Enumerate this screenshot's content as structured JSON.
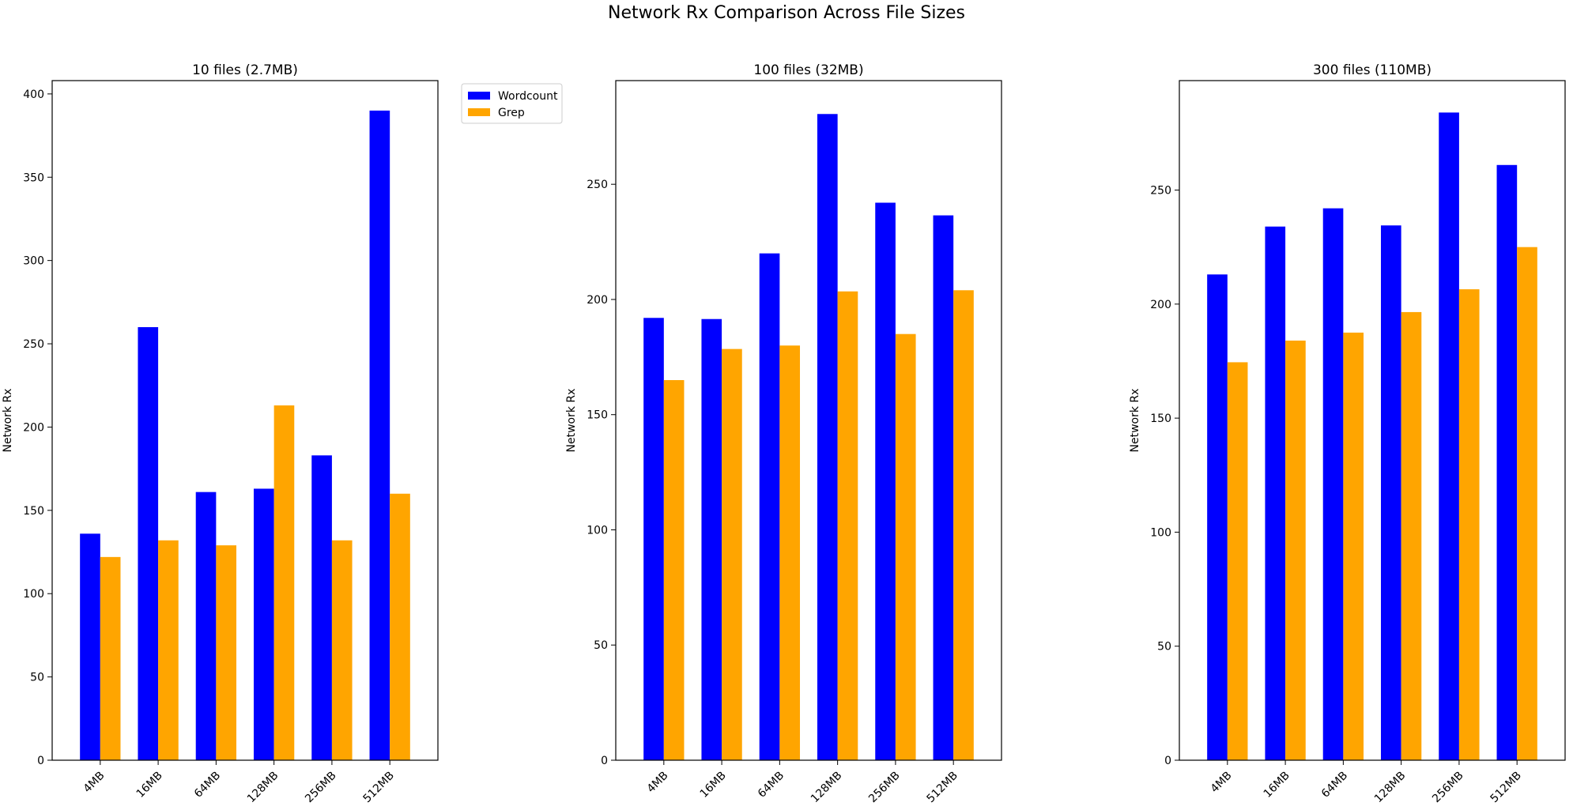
{
  "figure": {
    "title": "Network Rx Comparison Across File Sizes"
  },
  "legend": {
    "placement": "outside-right-of-first-panel",
    "entries": [
      {
        "label": "Wordcount",
        "color": "#0000ff"
      },
      {
        "label": "Grep",
        "color": "#ffa500"
      }
    ]
  },
  "chart_data": [
    {
      "type": "bar",
      "title": "10 files (2.7MB)",
      "xlabel": "",
      "ylabel": "Network Rx",
      "ylim": [
        0,
        408
      ],
      "yticks": [
        0,
        50,
        100,
        150,
        200,
        250,
        300,
        350,
        400
      ],
      "categories": [
        "4MB",
        "16MB",
        "64MB",
        "128MB",
        "256MB",
        "512MB"
      ],
      "grid": false,
      "series": [
        {
          "name": "Wordcount",
          "color": "#0000ff",
          "values": [
            136,
            260,
            161,
            163,
            183,
            390
          ]
        },
        {
          "name": "Grep",
          "color": "#ffa500",
          "values": [
            122,
            132,
            129,
            213,
            132,
            160
          ]
        }
      ]
    },
    {
      "type": "bar",
      "title": "100 files (32MB)",
      "xlabel": "",
      "ylabel": "Network Rx",
      "ylim": [
        0,
        295
      ],
      "yticks": [
        0,
        50,
        100,
        150,
        200,
        250
      ],
      "categories": [
        "4MB",
        "16MB",
        "64MB",
        "128MB",
        "256MB",
        "512MB"
      ],
      "grid": false,
      "series": [
        {
          "name": "Wordcount",
          "color": "#0000ff",
          "values": [
            192,
            191.5,
            220,
            280.5,
            242,
            236.5
          ]
        },
        {
          "name": "Grep",
          "color": "#ffa500",
          "values": [
            165,
            178.5,
            180,
            203.5,
            185,
            204
          ]
        }
      ]
    },
    {
      "type": "bar",
      "title": "300 files (110MB)",
      "xlabel": "",
      "ylabel": "Network Rx",
      "ylim": [
        0,
        298
      ],
      "yticks": [
        0,
        50,
        100,
        150,
        200,
        250
      ],
      "categories": [
        "4MB",
        "16MB",
        "64MB",
        "128MB",
        "256MB",
        "512MB"
      ],
      "grid": false,
      "series": [
        {
          "name": "Wordcount",
          "color": "#0000ff",
          "values": [
            213,
            234,
            242,
            234.5,
            284,
            261
          ]
        },
        {
          "name": "Grep",
          "color": "#ffa500",
          "values": [
            174.5,
            184,
            187.5,
            196.5,
            206.5,
            225
          ]
        }
      ]
    }
  ]
}
